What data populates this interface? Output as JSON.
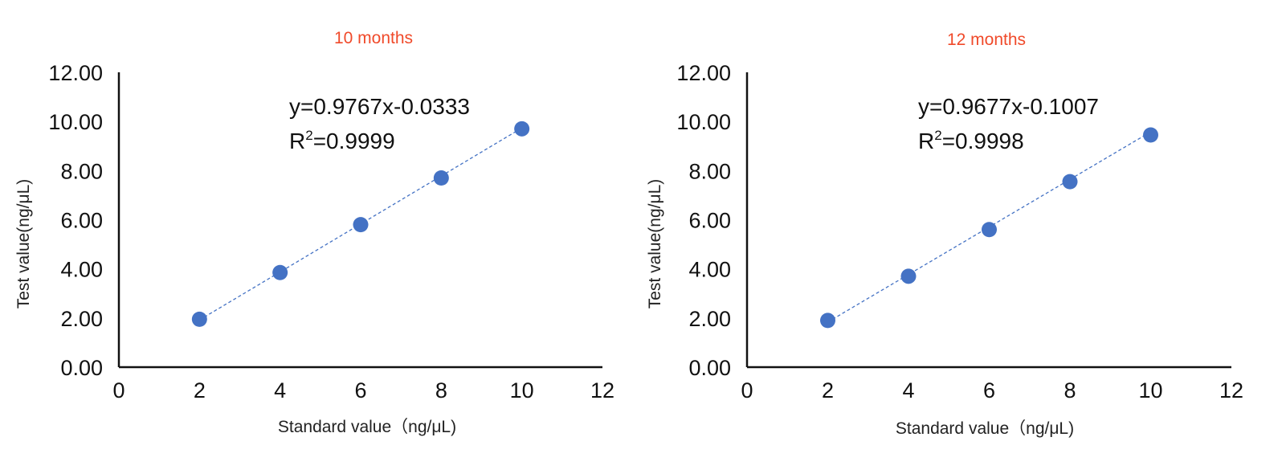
{
  "chart_data": [
    {
      "type": "scatter",
      "title": "10 months",
      "xlabel": "Standard value（ng/μL)",
      "ylabel": "Test value(ng/μL)",
      "xlim": [
        0,
        12
      ],
      "ylim": [
        0,
        12
      ],
      "x_ticks": [
        "0",
        "2",
        "4",
        "6",
        "8",
        "10",
        "12"
      ],
      "y_ticks": [
        "0.00",
        "2.00",
        "4.00",
        "6.00",
        "8.00",
        "10.00",
        "12.00"
      ],
      "series": [
        {
          "x": [
            2,
            4,
            6,
            8,
            10
          ],
          "y": [
            1.95,
            3.85,
            5.8,
            7.7,
            9.7
          ]
        }
      ],
      "trendline": {
        "type": "linear",
        "slope": 0.9767,
        "intercept": -0.0333,
        "style": "dashed"
      },
      "equation": "y=0.9767x-0.0333",
      "r2_label": "R",
      "r2_sup": "2",
      "r2_value": "=0.9999",
      "grid": false,
      "legend": "none",
      "colors": {
        "title": "#f04a2a",
        "marker": "#4472c4",
        "trend": "#4472c4"
      }
    },
    {
      "type": "scatter",
      "title": "12 months",
      "xlabel": "Standard value（ng/μL)",
      "ylabel": "Test value(ng/μL)",
      "xlim": [
        0,
        12
      ],
      "ylim": [
        0,
        12
      ],
      "x_ticks": [
        "0",
        "2",
        "4",
        "6",
        "8",
        "10",
        "12"
      ],
      "y_ticks": [
        "0.00",
        "2.00",
        "4.00",
        "6.00",
        "8.00",
        "10.00",
        "12.00"
      ],
      "series": [
        {
          "x": [
            2,
            4,
            6,
            8,
            10
          ],
          "y": [
            1.9,
            3.7,
            5.6,
            7.55,
            9.45
          ]
        }
      ],
      "trendline": {
        "type": "linear",
        "slope": 0.9677,
        "intercept": -0.1007,
        "style": "dashed"
      },
      "equation": "y=0.9677x-0.1007",
      "r2_label": "R",
      "r2_sup": "2",
      "r2_value": "=0.9998",
      "grid": false,
      "legend": "none",
      "colors": {
        "title": "#f04a2a",
        "marker": "#4472c4",
        "trend": "#4472c4"
      }
    }
  ]
}
